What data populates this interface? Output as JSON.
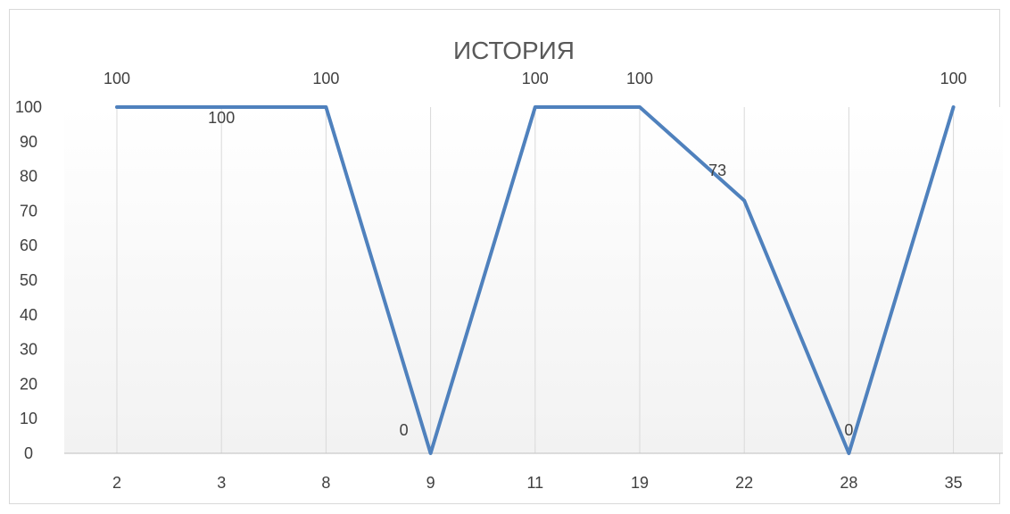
{
  "chart_data": {
    "type": "line",
    "title": "ИСТОРИЯ",
    "xlabel": "",
    "ylabel": "",
    "categories": [
      "2",
      "3",
      "8",
      "9",
      "11",
      "19",
      "22",
      "28",
      "35"
    ],
    "series": [
      {
        "values": [
          100,
          100,
          100,
          0,
          100,
          100,
          73,
          0,
          100
        ],
        "data_labels": [
          "100",
          "100",
          "100",
          "0",
          "100",
          "100",
          "73",
          "0",
          "100"
        ]
      }
    ],
    "ylim": [
      0,
      100
    ],
    "yticks": [
      "0",
      "10",
      "20",
      "30",
      "40",
      "50",
      "60",
      "70",
      "80",
      "90",
      "100"
    ],
    "grid": "vertical",
    "legend": "none",
    "colors": {
      "line": "#4f81bd",
      "grid": "#d9d9d9",
      "axis": "#bfbfbf",
      "text": "#404040",
      "title": "#595959",
      "plot_fill_top": "#ffffff",
      "plot_fill_bottom": "#f2f2f2"
    }
  }
}
